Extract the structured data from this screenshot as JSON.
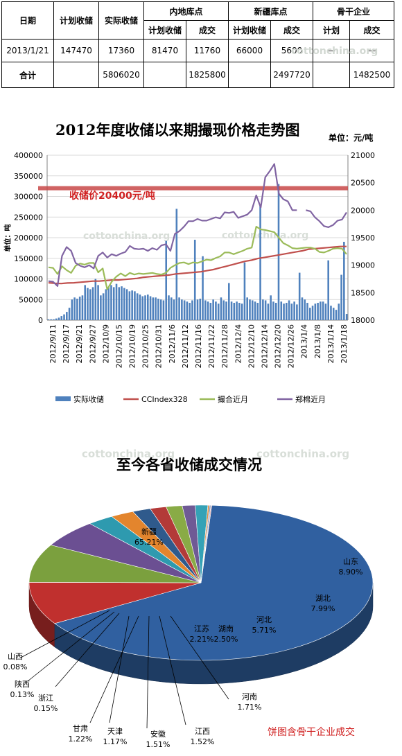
{
  "table": {
    "headers": {
      "date": "日期",
      "planned": "计划收储",
      "actual": "实际收储",
      "inland": "内地库点",
      "xinjiang": "新疆库点",
      "backbone": "骨干企业",
      "sub_plan": "计划收储",
      "sub_deal": "成交",
      "sub_plan_short": "计划"
    },
    "rows": [
      [
        "2013/1/21",
        "147470",
        "17360",
        "81470",
        "11760",
        "66000",
        "5600",
        "—",
        "—"
      ],
      [
        "合计",
        "",
        "5806020",
        "",
        "1825800",
        "",
        "2497720",
        "",
        "1482500"
      ]
    ]
  },
  "watermark": "cottonchina.org",
  "chart_data": [
    {
      "type": "bar",
      "title": "2012年度收储以来期撮现价格走势图",
      "unit_right": "单位：元/吨",
      "ylabel_left": "单位：吨",
      "annotation": "收储价20400元/吨",
      "ylim": [
        0,
        400000
      ],
      "y2lim": [
        18000,
        21000
      ],
      "yticks": [
        "0",
        "50000",
        "100000",
        "150000",
        "200000",
        "250000",
        "300000",
        "350000",
        "400000"
      ],
      "y2ticks": [
        "18000",
        "18500",
        "19000",
        "19500",
        "20000",
        "20500",
        "21000"
      ],
      "xtick_labels": [
        "2012/9/11",
        "2012/9/17",
        "2012/9/21",
        "2012/9/27",
        "2012/10/9",
        "2012/10/15",
        "2012/10/19",
        "2012/10/25",
        "2012/10/31",
        "2012/11/6",
        "2012/11/12",
        "2012/11/16",
        "2012/11/22",
        "2012/11/28",
        "2012/12/4",
        "2012/12/10",
        "2012/12/14",
        "2012/12/20",
        "2012/12/26",
        "2013/1/4",
        "2013/1/8",
        "2013/1/14",
        "2013/1/18"
      ],
      "reference_line": 20400,
      "legend": [
        "实际收储",
        "CCIndex328",
        "撮合近月",
        "郑棉近月"
      ],
      "series": [
        {
          "name": "实际收储",
          "axis": "left",
          "color": "#4f81bd",
          "values": [
            2000,
            2000,
            2000,
            4000,
            6000,
            10000,
            14000,
            20000,
            30000,
            50000,
            55000,
            52000,
            57000,
            60000,
            85000,
            78000,
            75000,
            80000,
            100000,
            85000,
            60000,
            65000,
            75000,
            80000,
            85000,
            80000,
            88000,
            80000,
            82000,
            78000,
            75000,
            70000,
            72000,
            70000,
            65000,
            62000,
            58000,
            60000,
            62000,
            58000,
            55000,
            55000,
            52000,
            50000,
            48000,
            192000,
            60000,
            55000,
            50000,
            270000,
            55000,
            50000,
            48000,
            45000,
            42000,
            48000,
            195000,
            50000,
            52000,
            155000,
            48000,
            45000,
            42000,
            50000,
            45000,
            40000,
            55000,
            48000,
            45000,
            90000,
            45000,
            42000,
            45000,
            42000,
            40000,
            140000,
            55000,
            50000,
            48000,
            45000,
            42000,
            280000,
            50000,
            48000,
            40000,
            60000,
            45000,
            42000,
            330000,
            45000,
            40000,
            42000,
            48000,
            40000,
            45000,
            38000,
            115000,
            55000,
            50000,
            42000,
            30000,
            35000,
            40000,
            42000,
            45000,
            45000,
            40000,
            145000,
            35000,
            30000,
            25000,
            40000,
            110000,
            190000,
            15000
          ]
        },
        {
          "name": "CCIndex328",
          "axis": "right",
          "color": "#c0504d",
          "values": [
            18680,
            18670,
            18665,
            18675,
            18680,
            18690,
            18700,
            18710,
            18710,
            18720,
            18730,
            18730,
            18740,
            18750,
            18760,
            18780,
            18790,
            18800,
            18810,
            18820,
            18840,
            18850,
            18860,
            18870,
            18880,
            18900,
            18920,
            18950,
            18980,
            19010,
            19040,
            19070,
            19090,
            19120,
            19140,
            19160,
            19180,
            19200,
            19220,
            19240,
            19260,
            19290,
            19300,
            19310,
            19320,
            19330,
            19340,
            19340
          ]
        },
        {
          "name": "撮合近月",
          "axis": "right",
          "color": "#9bbb59",
          "values": [
            18960,
            18950,
            18840,
            18980,
            18910,
            18860,
            18990,
            19030,
            19010,
            19040,
            19040,
            18870,
            18940,
            18560,
            18700,
            18790,
            18850,
            18800,
            18860,
            18830,
            18850,
            18840,
            18850,
            18860,
            18840,
            18830,
            18860,
            18950,
            19000,
            19040,
            19050,
            19020,
            19050,
            19040,
            19070,
            19100,
            19090,
            19130,
            19160,
            19230,
            19230,
            19200,
            19230,
            19260,
            19300,
            19320,
            19700,
            19650,
            19640,
            19620,
            19600,
            19500,
            19400,
            19360,
            19310,
            19300,
            19310,
            19320,
            19320,
            19300,
            19240,
            19230,
            19260,
            19300,
            19310,
            19300,
            19200
          ]
        },
        {
          "name": "郑棉近月",
          "axis": "right",
          "color": "#8064a2",
          "values": [
            18710,
            18700,
            18620,
            19170,
            19330,
            19260,
            19040,
            18990,
            18960,
            19000,
            18940,
            19170,
            19230,
            19140,
            19200,
            19170,
            19210,
            19240,
            19350,
            19300,
            19290,
            19300,
            19260,
            19310,
            19280,
            19360,
            19380,
            19260,
            19570,
            19620,
            19700,
            19800,
            19800,
            19840,
            19810,
            19810,
            19840,
            19870,
            19850,
            19960,
            19950,
            19970,
            19860,
            19890,
            19920,
            20000,
            20270,
            20050,
            20600,
            20710,
            20840,
            20300,
            20200,
            20160,
            20000,
            20000,
            null,
            20000,
            19980,
            19870,
            19800,
            19710,
            19690,
            19730,
            19810,
            19830,
            19960
          ]
        }
      ]
    },
    {
      "type": "pie",
      "title": "至今各省收储成交情况",
      "annotation": "饼图含骨干企业成交",
      "slices": [
        {
          "name": "新疆",
          "value": 65.21,
          "label": "65.21%",
          "color": "#3060a0"
        },
        {
          "name": "山东",
          "value": 8.9,
          "label": "8.90%",
          "color": "#c0302e"
        },
        {
          "name": "湖北",
          "value": 7.99,
          "label": "7.99%",
          "color": "#7ba03e"
        },
        {
          "name": "河北",
          "value": 5.71,
          "label": "5.71%",
          "color": "#6b4f92"
        },
        {
          "name": "湖南",
          "value": 2.5,
          "label": "2.50%",
          "color": "#2e9aaf"
        },
        {
          "name": "江苏",
          "value": 2.21,
          "label": "2.21%",
          "color": "#e3852d"
        },
        {
          "name": "河南",
          "value": 1.71,
          "label": "1.71%",
          "color": "#2f5a8c"
        },
        {
          "name": "江西",
          "value": 1.52,
          "label": "1.52%",
          "color": "#b33a38"
        },
        {
          "name": "安徽",
          "value": 1.51,
          "label": "1.51%",
          "color": "#89ab46"
        },
        {
          "name": "甘肃",
          "value": 1.22,
          "label": "1.22%",
          "color": "#6f5a95"
        },
        {
          "name": "天津",
          "value": 1.17,
          "label": "1.17%",
          "color": "#35a2b6"
        },
        {
          "name": "浙江",
          "value": 0.15,
          "label": "0.15%",
          "color": "#e08a38"
        },
        {
          "name": "陕西",
          "value": 0.13,
          "label": "0.13%",
          "color": "#7f9cc8"
        },
        {
          "name": "山西",
          "value": 0.08,
          "label": "0.08%",
          "color": "#d98b89"
        }
      ]
    }
  ]
}
